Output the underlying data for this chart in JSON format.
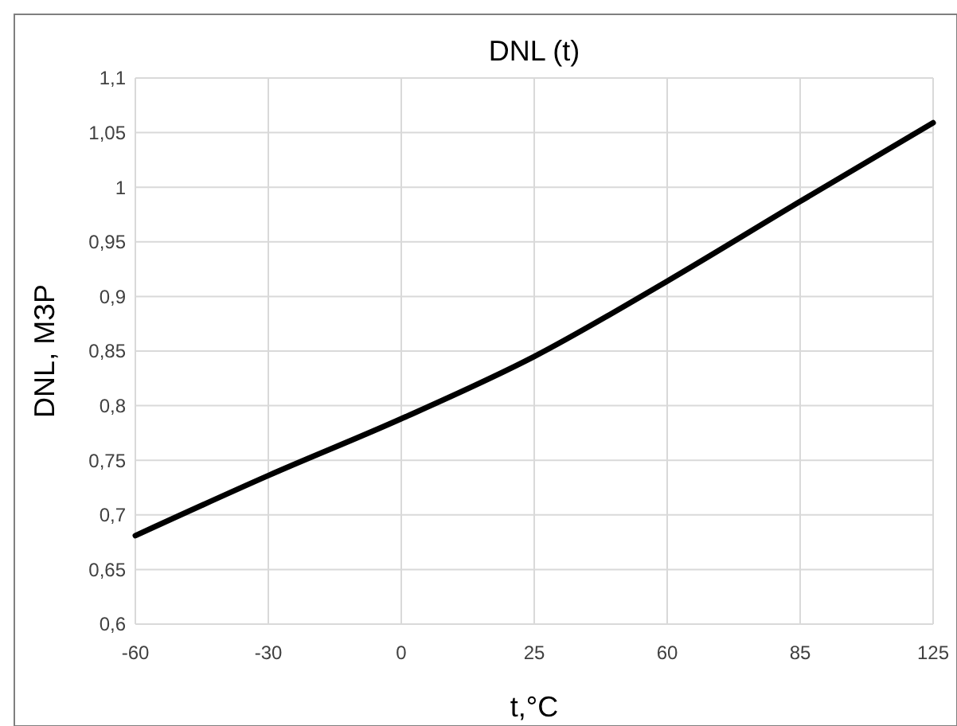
{
  "chart_data": {
    "type": "line",
    "title": "DNL (t)",
    "xlabel": "t,°C",
    "ylabel": "DNL, МЗР",
    "categories": [
      "-60",
      "-30",
      "0",
      "25",
      "60",
      "85",
      "125"
    ],
    "series": [
      {
        "color": "#000000",
        "values": [
          0.681,
          0.736,
          0.788,
          0.845,
          0.914,
          0.987,
          1.059
        ]
      }
    ],
    "ylim": [
      0.6,
      1.1
    ],
    "yticks": [
      {
        "value": 0.6,
        "label": "0,6"
      },
      {
        "value": 0.65,
        "label": "0,65"
      },
      {
        "value": 0.7,
        "label": "0,7"
      },
      {
        "value": 0.75,
        "label": "0,75"
      },
      {
        "value": 0.8,
        "label": "0,8"
      },
      {
        "value": 0.85,
        "label": "0,85"
      },
      {
        "value": 0.9,
        "label": "0,9"
      },
      {
        "value": 0.95,
        "label": "0,95"
      },
      {
        "value": 1,
        "label": "1"
      },
      {
        "value": 1.05,
        "label": "1,05"
      },
      {
        "value": 1.1,
        "label": "1,1"
      }
    ],
    "grid": true,
    "marker": "none",
    "line_style": "solid"
  }
}
